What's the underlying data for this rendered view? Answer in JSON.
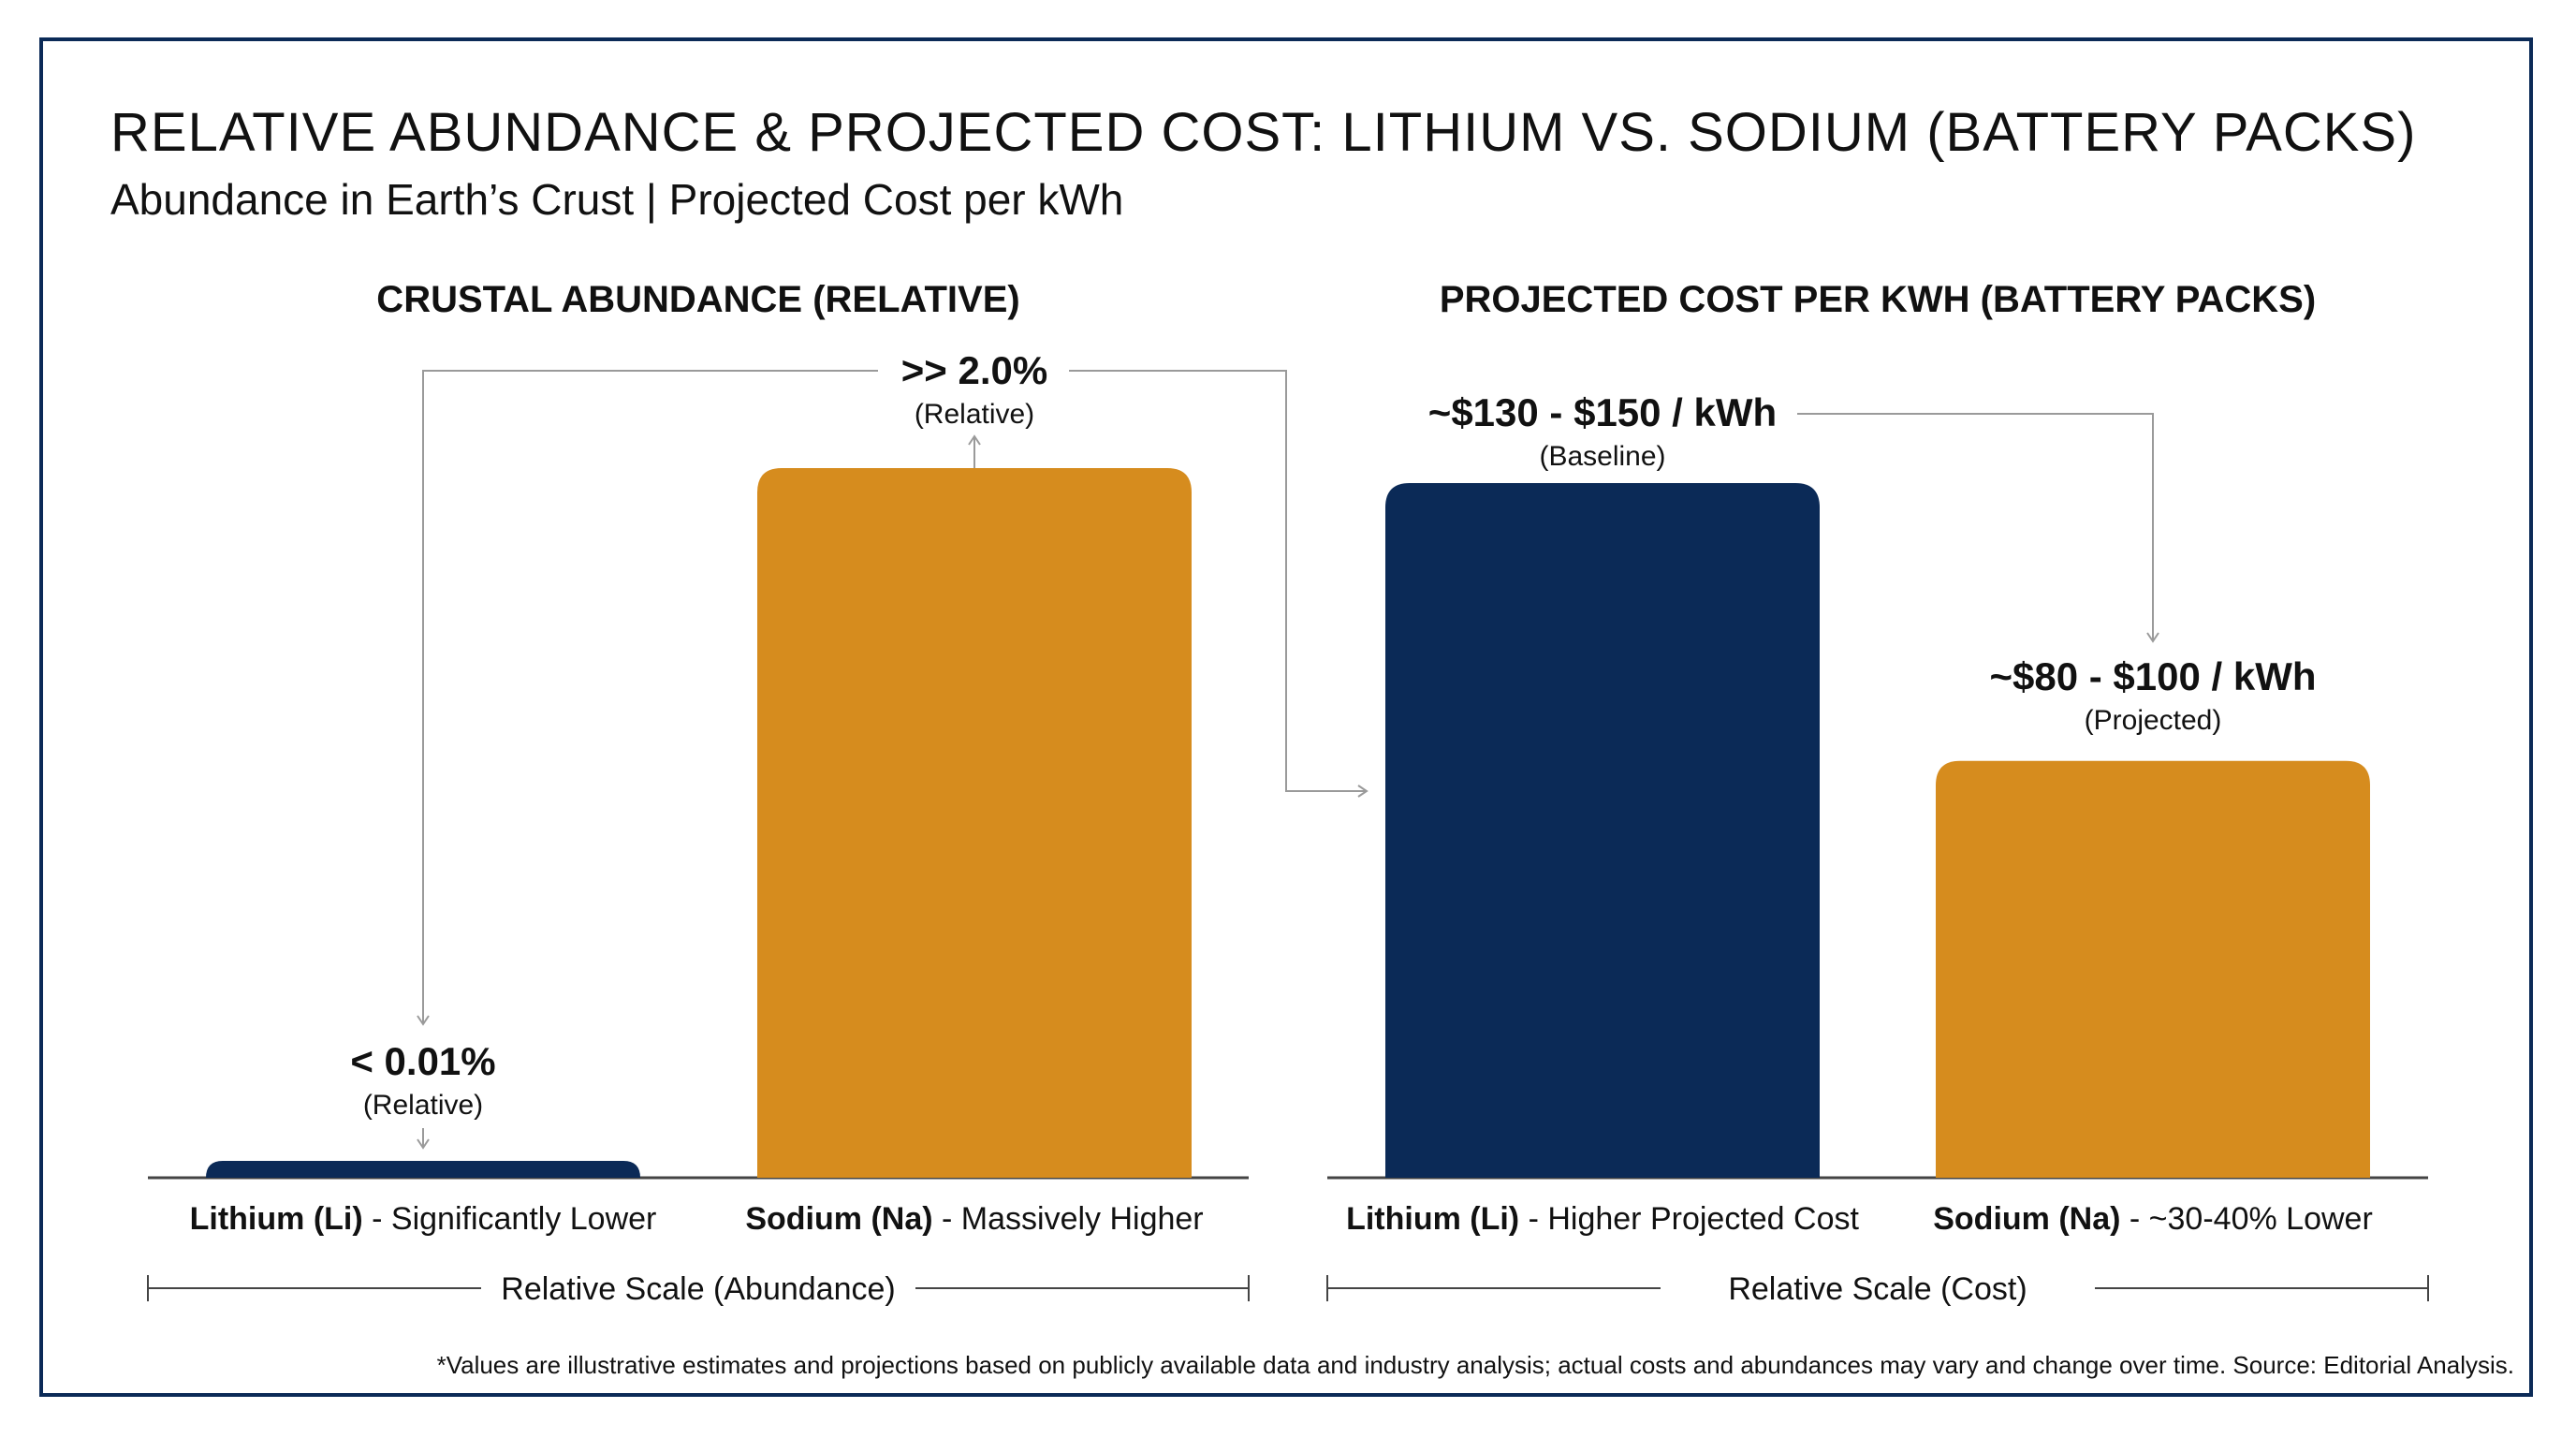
{
  "header": {
    "title": "RELATIVE ABUNDANCE & PROJECTED COST: LITHIUM VS. SODIUM (BATTERY PACKS)",
    "subtitle": "Abundance in Earth’s Crust | Projected Cost per kWh"
  },
  "footnote": "*Values are illustrative estimates and projections based on publicly available data and industry analysis; actual costs and abundances may vary and change over time. Source: Editorial Analysis.",
  "colors": {
    "lithium": "#0b2a57",
    "sodium": "#d68c1e",
    "frame": "#0b2a57",
    "axis": "#555555",
    "connector": "#9a9a9a"
  },
  "chart_data": [
    {
      "type": "bar",
      "title": "CRUSTAL ABUNDANCE (RELATIVE)",
      "categories": [
        {
          "name": "Lithium (Li)",
          "desc": " - Significantly Lower"
        },
        {
          "name": "Sodium (Na)",
          "desc": " - Massively Higher"
        }
      ],
      "values": [
        0.01,
        2.0
      ],
      "value_labels": [
        "< 0.01%",
        ">> 2.0%"
      ],
      "value_notes": [
        "(Relative)",
        "(Relative)"
      ],
      "scale_label": "Relative Scale (Abundance)",
      "ylim": [
        0,
        2.0
      ]
    },
    {
      "type": "bar",
      "title": "PROJECTED COST PER KWH (BATTERY PACKS)",
      "categories": [
        {
          "name": "Lithium (Li)",
          "desc": " - Higher Projected Cost"
        },
        {
          "name": "Sodium (Na)",
          "desc": " - ~30-40% Lower"
        }
      ],
      "values": [
        150,
        90
      ],
      "value_labels": [
        "~$130 - $150 / kWh",
        "~$80 - $100 / kWh"
      ],
      "value_notes": [
        "(Baseline)",
        "(Projected)"
      ],
      "scale_label": "Relative Scale (Cost)",
      "ylim": [
        0,
        150
      ]
    }
  ]
}
